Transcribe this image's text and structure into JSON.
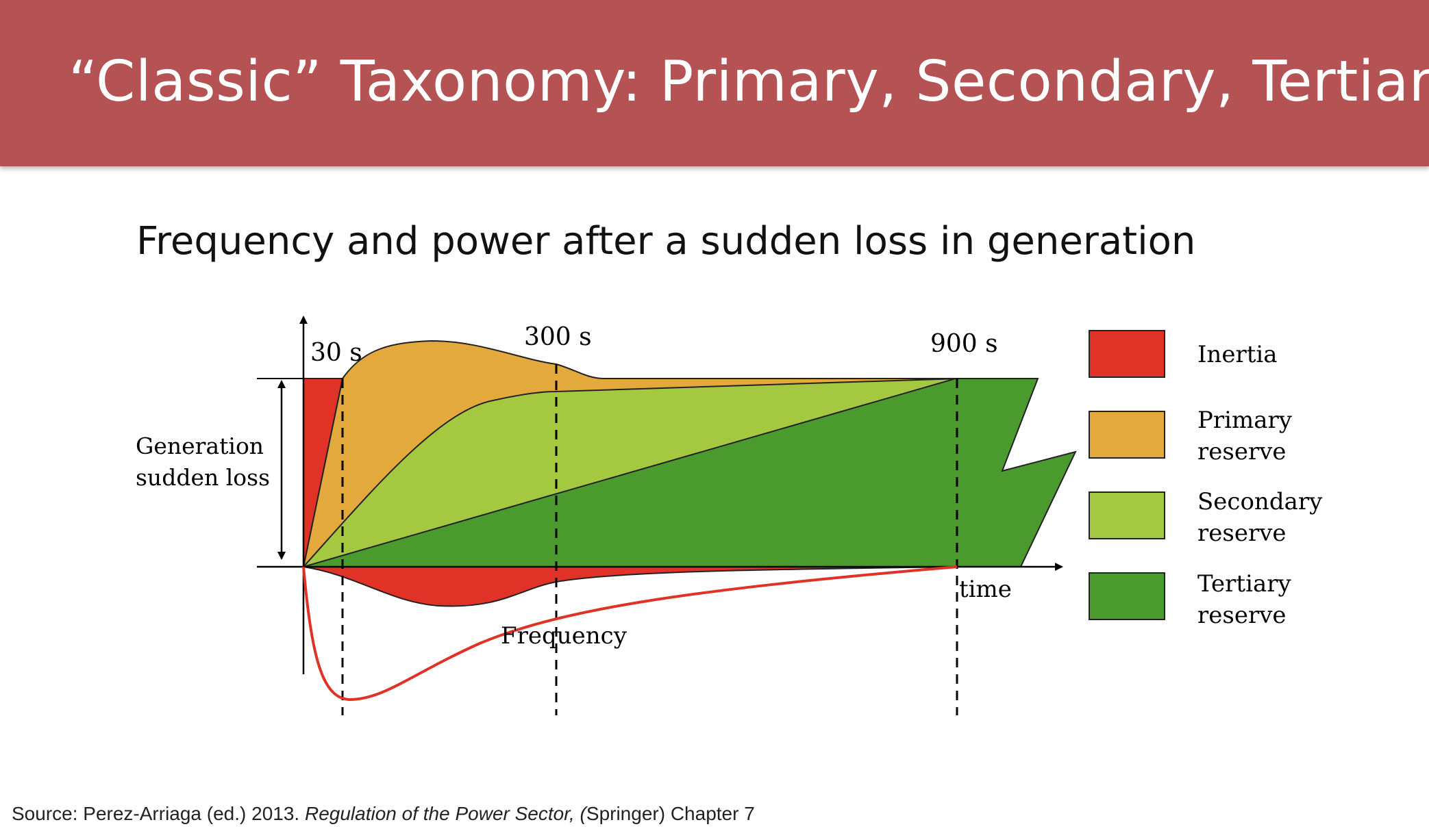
{
  "slide": {
    "title": "“Classic” Taxonomy: Primary, Secondary, Tertiary",
    "subtitle": "Frequency and power after a sudden loss in generation"
  },
  "diagram": {
    "time_markers": [
      "30 s",
      "300 s",
      "900 s"
    ],
    "axis_label": "time",
    "loss_label_line1": "Generation",
    "loss_label_line2": "sudden loss",
    "frequency_label": "Frequency",
    "legend": [
      {
        "line1": "Inertia",
        "line2": "",
        "color": "#e03226"
      },
      {
        "line1": "Primary",
        "line2": "reserve",
        "color": "#e3a93d"
      },
      {
        "line1": "Secondary",
        "line2": "reserve",
        "color": "#a4c840"
      },
      {
        "line1": "Tertiary",
        "line2": "reserve",
        "color": "#4b9a2e"
      }
    ],
    "colors": {
      "inertia": "#e03226",
      "primary": "#e3a93d",
      "secondary": "#a4c840",
      "tertiary": "#4b9a2e",
      "frequency_curve": "#e03226",
      "title_bar": "#b45254"
    }
  },
  "source": {
    "prefix": "Source: Perez-Arriaga (ed.) 2013. ",
    "book": "Regulation of the Power Sector, (",
    "suffix": "Springer) Chapter 7"
  }
}
